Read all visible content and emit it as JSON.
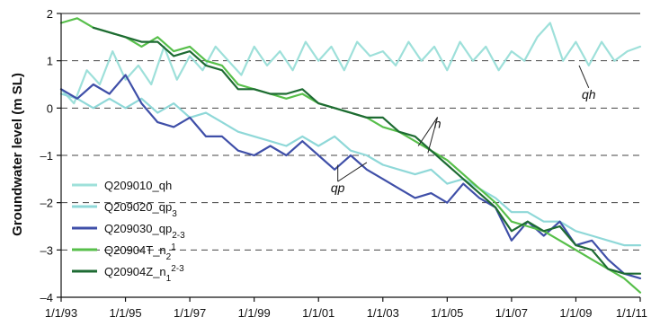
{
  "chart_data": {
    "type": "line",
    "ylabel": "Groundwater level (m SL)",
    "xlim": [
      1993.0,
      2011.0
    ],
    "ylim": [
      -4,
      2
    ],
    "x_ticks": [
      1993,
      1995,
      1997,
      1999,
      2001,
      2003,
      2005,
      2007,
      2009,
      2011
    ],
    "x_tick_labels": [
      "1/1/93",
      "1/1/95",
      "1/1/97",
      "1/1/99",
      "1/1/01",
      "1/1/03",
      "1/1/05",
      "1/1/07",
      "1/1/09",
      "1/1/11"
    ],
    "y_ticks": [
      -4,
      -3,
      -2,
      -1,
      0,
      1,
      2
    ],
    "y_tick_labels": [
      "–4",
      "–3",
      "–2",
      "–1",
      "0",
      "1",
      "2"
    ],
    "grid": "horizontal dashed at 1, 0, -1, -2, -3; solid at 2",
    "legend_position": "bottom-left",
    "series": [
      {
        "name": "Q209010_qh",
        "name_main": "Q209010_qh",
        "name_sub": "",
        "name_sup": "",
        "color": "#9ee0da",
        "x": [
          1993.0,
          1993.4,
          1993.8,
          1994.2,
          1994.6,
          1995.0,
          1995.4,
          1995.8,
          1996.2,
          1996.6,
          1997.0,
          1997.4,
          1997.8,
          1998.2,
          1998.6,
          1999.0,
          1999.4,
          1999.8,
          2000.2,
          2000.6,
          2001.0,
          2001.4,
          2001.8,
          2002.2,
          2002.6,
          2003.0,
          2003.4,
          2003.8,
          2004.2,
          2004.6,
          2005.0,
          2005.4,
          2005.8,
          2006.2,
          2006.6,
          2007.0,
          2007.4,
          2007.8,
          2008.2,
          2008.6,
          2009.0,
          2009.4,
          2009.8,
          2010.2,
          2010.6,
          2011.0
        ],
        "y": [
          0.4,
          0.1,
          0.8,
          0.5,
          1.2,
          0.6,
          0.9,
          0.5,
          1.3,
          0.6,
          1.1,
          0.8,
          1.3,
          1.0,
          0.7,
          1.3,
          0.9,
          1.2,
          0.8,
          1.4,
          1.0,
          1.3,
          0.8,
          1.4,
          1.1,
          1.2,
          0.9,
          1.4,
          1.0,
          1.3,
          0.8,
          1.4,
          1.0,
          1.3,
          0.8,
          1.2,
          1.0,
          1.5,
          1.8,
          1.0,
          1.4,
          0.9,
          1.4,
          1.0,
          1.2,
          1.3
        ]
      },
      {
        "name": "Q209020_qp3",
        "name_main": "Q209020_qp",
        "name_sub": "3",
        "name_sup": "",
        "color": "#8fd8d8",
        "x": [
          1993.0,
          1993.5,
          1994.0,
          1994.5,
          1995.0,
          1995.5,
          1996.0,
          1996.5,
          1997.0,
          1997.5,
          1998.0,
          1998.5,
          1999.0,
          1999.5,
          2000.0,
          2000.5,
          2001.0,
          2001.5,
          2002.0,
          2002.5,
          2003.0,
          2003.5,
          2004.0,
          2004.5,
          2005.0,
          2005.5,
          2006.0,
          2006.5,
          2007.0,
          2007.5,
          2008.0,
          2008.5,
          2009.0,
          2009.5,
          2010.0,
          2010.5,
          2011.0
        ],
        "y": [
          0.3,
          0.2,
          0.0,
          0.2,
          0.0,
          0.2,
          -0.1,
          0.1,
          -0.2,
          -0.1,
          -0.3,
          -0.5,
          -0.6,
          -0.7,
          -0.8,
          -0.6,
          -0.8,
          -0.6,
          -0.9,
          -1.0,
          -1.2,
          -1.3,
          -1.4,
          -1.3,
          -1.6,
          -1.5,
          -1.7,
          -1.9,
          -2.2,
          -2.2,
          -2.4,
          -2.4,
          -2.6,
          -2.7,
          -2.8,
          -2.9,
          -2.9
        ]
      },
      {
        "name": "Q209030_qp2-3",
        "name_main": "Q209030_qp",
        "name_sub": "2-3",
        "name_sup": "",
        "color": "#3f4fa8",
        "x": [
          1993.0,
          1993.5,
          1994.0,
          1994.5,
          1995.0,
          1995.5,
          1996.0,
          1996.5,
          1997.0,
          1997.5,
          1998.0,
          1998.5,
          1999.0,
          1999.5,
          2000.0,
          2000.5,
          2001.0,
          2001.5,
          2002.0,
          2002.5,
          2003.0,
          2003.5,
          2004.0,
          2004.5,
          2005.0,
          2005.5,
          2006.0,
          2006.5,
          2007.0,
          2007.5,
          2008.0,
          2008.5,
          2009.0,
          2009.5,
          2010.0,
          2010.5,
          2011.0
        ],
        "y": [
          0.4,
          0.2,
          0.5,
          0.3,
          0.7,
          0.1,
          -0.3,
          -0.4,
          -0.2,
          -0.6,
          -0.6,
          -0.9,
          -1.0,
          -0.8,
          -1.0,
          -0.7,
          -1.0,
          -1.3,
          -1.0,
          -1.3,
          -1.5,
          -1.7,
          -1.9,
          -1.8,
          -2.0,
          -1.6,
          -1.9,
          -2.1,
          -2.8,
          -2.4,
          -2.7,
          -2.4,
          -2.9,
          -2.8,
          -3.2,
          -3.5,
          -3.6
        ]
      },
      {
        "name": "Q20904T_n21",
        "name_main": "Q20904T_n",
        "name_sub": "2",
        "name_sup": "1",
        "color": "#57bf4a",
        "x": [
          1993.0,
          1993.5,
          1994.0,
          1994.5,
          1995.0,
          1995.5,
          1996.0,
          1996.5,
          1997.0,
          1997.5,
          1998.0,
          1998.5,
          1999.0,
          1999.5,
          2000.0,
          2000.5,
          2001.0,
          2001.5,
          2002.0,
          2002.5,
          2003.0,
          2003.5,
          2004.0,
          2004.5,
          2005.0,
          2005.5,
          2006.0,
          2006.5,
          2007.0,
          2007.5,
          2008.0,
          2008.5,
          2009.0,
          2009.5,
          2010.0,
          2010.5,
          2011.0
        ],
        "y": [
          1.8,
          1.9,
          1.7,
          1.6,
          1.5,
          1.3,
          1.5,
          1.2,
          1.3,
          1.0,
          0.9,
          0.5,
          0.4,
          0.3,
          0.2,
          0.3,
          0.1,
          0.0,
          -0.1,
          -0.2,
          -0.4,
          -0.5,
          -0.7,
          -0.9,
          -1.1,
          -1.4,
          -1.7,
          -2.0,
          -2.4,
          -2.5,
          -2.6,
          -2.8,
          -3.0,
          -3.2,
          -3.4,
          -3.6,
          -3.9
        ]
      },
      {
        "name": "Q20904Z_n12-3",
        "name_main": "Q20904Z_n",
        "name_sub": "1",
        "name_sup": "2-3",
        "color": "#1e6b33",
        "x": [
          1994.0,
          1994.5,
          1995.0,
          1995.5,
          1996.0,
          1996.5,
          1997.0,
          1997.5,
          1998.0,
          1998.5,
          1999.0,
          1999.5,
          2000.0,
          2000.5,
          2001.0,
          2001.5,
          2002.0,
          2002.5,
          2003.0,
          2003.5,
          2004.0,
          2004.5,
          2005.0,
          2005.5,
          2006.0,
          2006.5,
          2007.0,
          2007.5,
          2008.0,
          2008.5,
          2009.0,
          2009.5,
          2010.0,
          2010.5,
          2011.0
        ],
        "y": [
          1.7,
          1.6,
          1.5,
          1.4,
          1.4,
          1.1,
          1.2,
          0.9,
          0.8,
          0.4,
          0.4,
          0.3,
          0.3,
          0.4,
          0.1,
          0.0,
          -0.1,
          -0.2,
          -0.2,
          -0.5,
          -0.6,
          -0.9,
          -1.2,
          -1.5,
          -1.8,
          -2.1,
          -2.6,
          -2.4,
          -2.6,
          -2.5,
          -2.9,
          -3.0,
          -3.4,
          -3.5,
          -3.5
        ]
      }
    ],
    "annotations": [
      {
        "text": "qh",
        "x": 2009.4,
        "y": 0.2,
        "target": [
          2009.1,
          0.9
        ]
      },
      {
        "text": "n",
        "x": 2004.7,
        "y": -0.42,
        "targets": [
          [
            2004.1,
            -0.8
          ],
          [
            2004.4,
            -0.95
          ]
        ]
      },
      {
        "text": "qp",
        "x": 2001.6,
        "y": -1.78,
        "targets": [
          [
            2001.6,
            -1.2
          ],
          [
            2002.5,
            -1.15
          ]
        ]
      }
    ]
  }
}
